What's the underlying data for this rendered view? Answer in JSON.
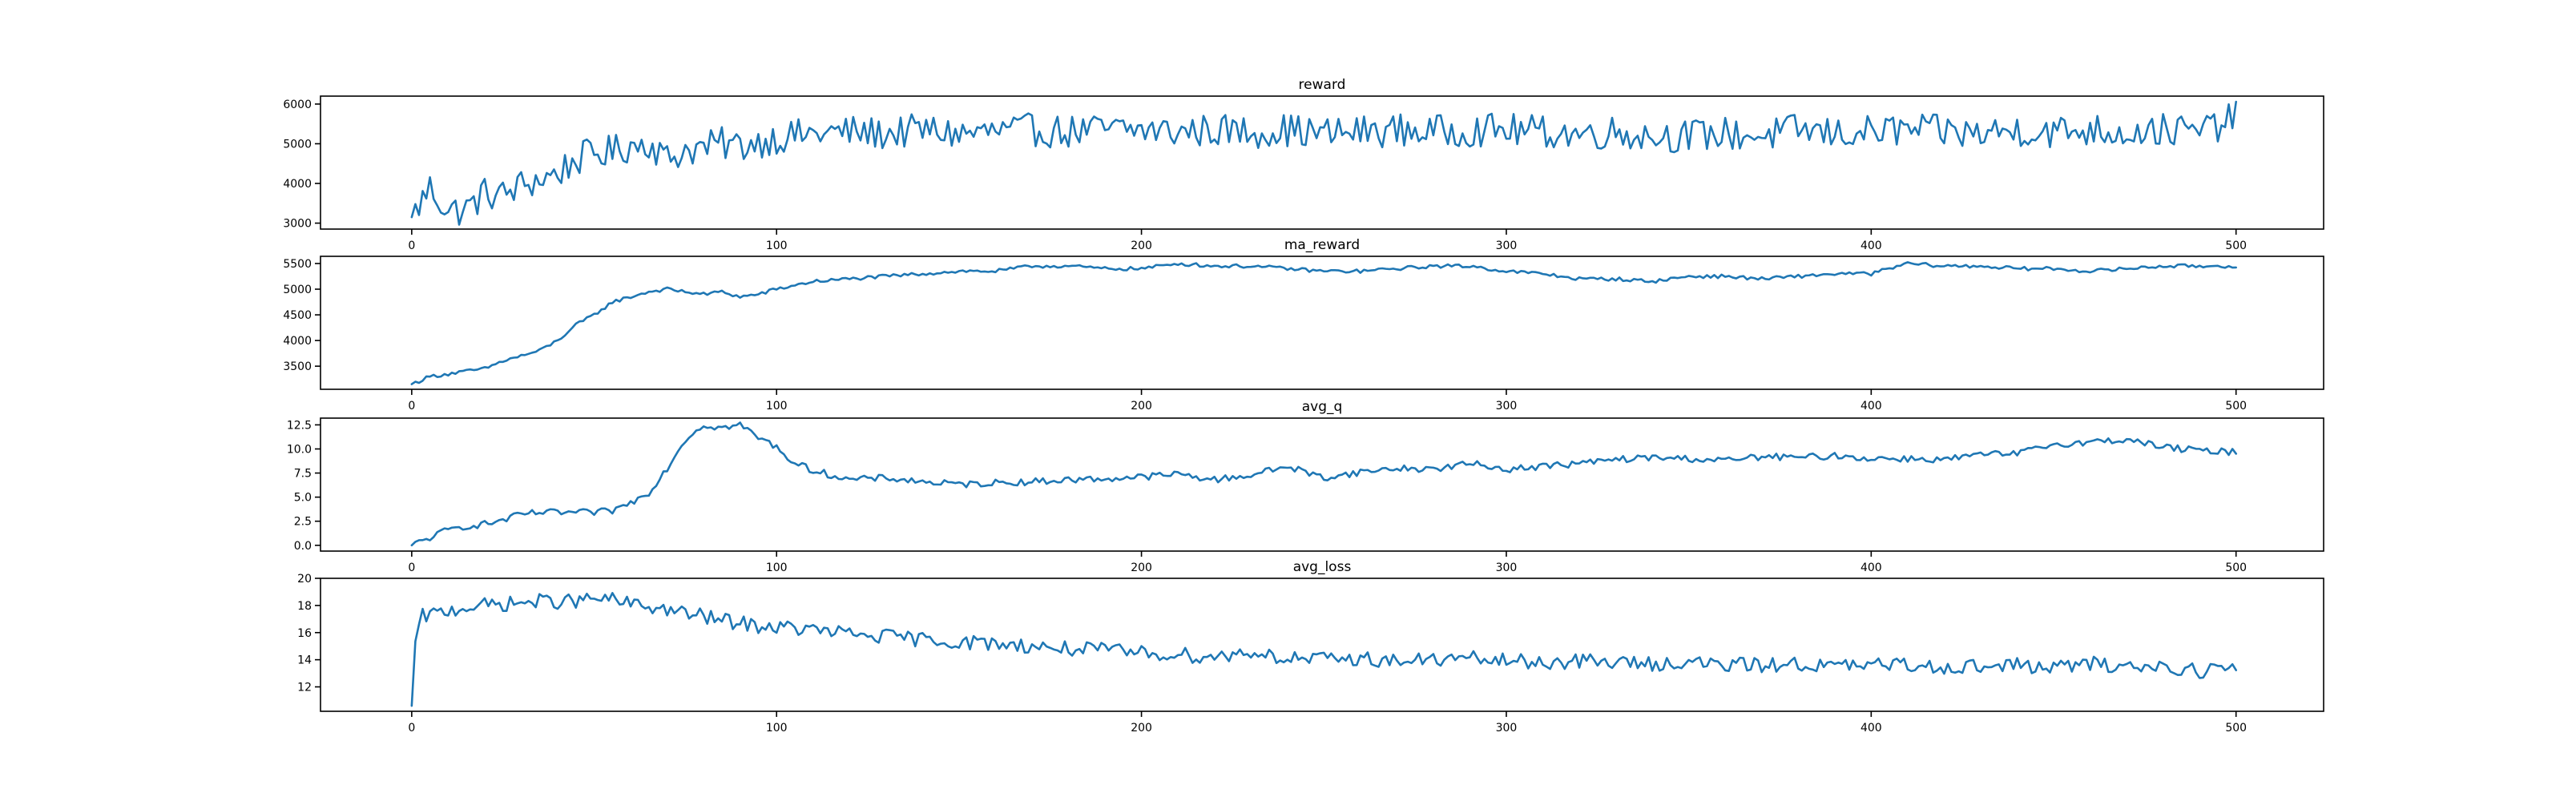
{
  "chart_data": [
    {
      "type": "line",
      "title": "reward",
      "xlabel": "",
      "ylabel": "",
      "xlim": [
        -25,
        524
      ],
      "ylim": [
        2850,
        6200
      ],
      "xticks": [
        0,
        100,
        200,
        300,
        400,
        500
      ],
      "yticks": [
        3000,
        4000,
        5000,
        6000
      ],
      "grid": false,
      "line_color": "#1f77b4",
      "series": [
        {
          "x": [
            0,
            5,
            10,
            15,
            20,
            25,
            30,
            35,
            40,
            45,
            50,
            55,
            60,
            65,
            70,
            75,
            80,
            85,
            90,
            95,
            100,
            110,
            120,
            130,
            140,
            150,
            160,
            170,
            180,
            190,
            200,
            210,
            220,
            230,
            240,
            250,
            260,
            270,
            280,
            290,
            300,
            310,
            320,
            330,
            340,
            350,
            360,
            370,
            380,
            390,
            400,
            410,
            420,
            430,
            440,
            450,
            460,
            470,
            480,
            490,
            500
          ],
          "values": [
            3150,
            3900,
            3300,
            3350,
            3750,
            3700,
            3950,
            4100,
            4250,
            4600,
            4750,
            4800,
            4950,
            5050,
            4600,
            4850,
            4900,
            5000,
            4950,
            5050,
            5150,
            5250,
            5300,
            5250,
            5350,
            5250,
            5300,
            5350,
            5300,
            5350,
            5350,
            5300,
            5350,
            5300,
            5350,
            5250,
            5300,
            5350,
            5300,
            5350,
            5350,
            5300,
            5250,
            5300,
            5200,
            5200,
            5250,
            5200,
            5350,
            5250,
            5300,
            5350,
            5300,
            5250,
            5350,
            5300,
            5350,
            5300,
            5350,
            5300,
            5650
          ],
          "noise": 420
        }
      ]
    },
    {
      "type": "line",
      "title": "ma_reward",
      "xlabel": "",
      "ylabel": "",
      "xlim": [
        -25,
        524
      ],
      "ylim": [
        3050,
        5640
      ],
      "xticks": [
        0,
        100,
        200,
        300,
        400,
        500
      ],
      "yticks": [
        3500,
        4000,
        4500,
        5000,
        5500
      ],
      "grid": false,
      "line_color": "#1f77b4",
      "series": [
        {
          "x": [
            0,
            5,
            10,
            15,
            20,
            25,
            30,
            35,
            40,
            45,
            50,
            55,
            60,
            65,
            70,
            75,
            80,
            85,
            90,
            95,
            100,
            110,
            120,
            130,
            140,
            150,
            160,
            170,
            180,
            190,
            200,
            210,
            220,
            230,
            240,
            250,
            260,
            270,
            280,
            290,
            300,
            310,
            320,
            330,
            340,
            350,
            360,
            370,
            380,
            390,
            400,
            410,
            420,
            430,
            440,
            450,
            460,
            470,
            480,
            490,
            500
          ],
          "values": [
            3150,
            3300,
            3350,
            3400,
            3450,
            3600,
            3700,
            3800,
            4000,
            4300,
            4500,
            4750,
            4850,
            4950,
            5000,
            4950,
            4900,
            4950,
            4850,
            4900,
            5000,
            5150,
            5200,
            5250,
            5300,
            5350,
            5350,
            5450,
            5450,
            5400,
            5400,
            5500,
            5450,
            5450,
            5400,
            5350,
            5350,
            5400,
            5450,
            5450,
            5350,
            5300,
            5200,
            5200,
            5150,
            5250,
            5250,
            5200,
            5250,
            5300,
            5300,
            5500,
            5450,
            5450,
            5400,
            5400,
            5350,
            5400,
            5450,
            5450,
            5450
          ],
          "noise": 35
        }
      ]
    },
    {
      "type": "line",
      "title": "avg_q",
      "xlabel": "",
      "ylabel": "",
      "xlim": [
        -25,
        524
      ],
      "ylim": [
        -0.6,
        13.2
      ],
      "xticks": [
        0,
        100,
        200,
        300,
        400,
        500
      ],
      "yticks": [
        0.0,
        2.5,
        5.0,
        7.5,
        10.0,
        12.5
      ],
      "grid": false,
      "line_color": "#1f77b4",
      "series": [
        {
          "x": [
            0,
            5,
            10,
            15,
            20,
            25,
            30,
            35,
            40,
            45,
            50,
            55,
            60,
            65,
            70,
            75,
            80,
            85,
            90,
            95,
            100,
            105,
            110,
            120,
            130,
            140,
            150,
            160,
            170,
            180,
            190,
            200,
            210,
            220,
            230,
            240,
            250,
            260,
            270,
            280,
            290,
            300,
            310,
            320,
            330,
            340,
            350,
            360,
            370,
            380,
            390,
            400,
            410,
            420,
            430,
            440,
            450,
            460,
            470,
            480,
            490,
            500
          ],
          "values": [
            0.0,
            0.8,
            1.6,
            2.0,
            2.2,
            2.6,
            3.2,
            3.4,
            3.4,
            3.4,
            3.4,
            3.6,
            4.4,
            5.5,
            8.0,
            11.0,
            12.5,
            12.2,
            12.5,
            11.2,
            10.2,
            8.5,
            7.8,
            6.8,
            7.0,
            6.6,
            6.3,
            6.5,
            6.6,
            6.8,
            6.9,
            7.1,
            7.4,
            6.8,
            7.3,
            8.2,
            7.0,
            7.6,
            8.0,
            7.9,
            8.5,
            7.9,
            8.2,
            8.5,
            8.9,
            9.1,
            9.0,
            8.8,
            9.2,
            9.1,
            9.3,
            9.0,
            9.0,
            8.9,
            9.4,
            9.5,
            10.5,
            10.7,
            11.0,
            10.2,
            9.8,
            9.7
          ],
          "noise": 0.35
        }
      ]
    },
    {
      "type": "line",
      "title": "avg_loss",
      "xlabel": "",
      "ylabel": "",
      "xlim": [
        -25,
        524
      ],
      "ylim": [
        10.2,
        20.0
      ],
      "xticks": [
        0,
        100,
        200,
        300,
        400,
        500
      ],
      "yticks": [
        12,
        14,
        16,
        18,
        20
      ],
      "grid": false,
      "line_color": "#1f77b4",
      "series": [
        {
          "x": [
            0,
            1,
            2,
            3,
            5,
            10,
            15,
            20,
            25,
            30,
            35,
            40,
            45,
            50,
            55,
            60,
            65,
            70,
            75,
            80,
            85,
            90,
            95,
            100,
            110,
            120,
            130,
            140,
            150,
            160,
            170,
            180,
            190,
            200,
            210,
            220,
            230,
            240,
            250,
            260,
            270,
            280,
            290,
            300,
            310,
            320,
            330,
            340,
            350,
            360,
            370,
            380,
            390,
            400,
            410,
            420,
            430,
            440,
            450,
            460,
            470,
            480,
            490,
            500
          ],
          "values": [
            10.6,
            15.0,
            16.5,
            17.2,
            17.3,
            17.6,
            17.9,
            18.0,
            18.1,
            18.2,
            18.3,
            18.3,
            18.3,
            18.5,
            18.4,
            18.1,
            17.9,
            17.7,
            17.4,
            17.2,
            16.9,
            16.7,
            16.5,
            16.4,
            16.2,
            15.9,
            15.7,
            15.5,
            15.3,
            15.2,
            15.0,
            14.8,
            14.7,
            14.5,
            14.4,
            14.2,
            14.6,
            14.1,
            14.0,
            14.1,
            13.9,
            14.0,
            14.1,
            13.9,
            13.8,
            13.9,
            13.8,
            13.7,
            13.8,
            13.6,
            13.6,
            13.7,
            13.5,
            13.6,
            13.6,
            13.5,
            13.5,
            13.6,
            13.4,
            13.7,
            13.5,
            13.5,
            13.2,
            13.4
          ],
          "noise": 0.55
        }
      ]
    }
  ]
}
